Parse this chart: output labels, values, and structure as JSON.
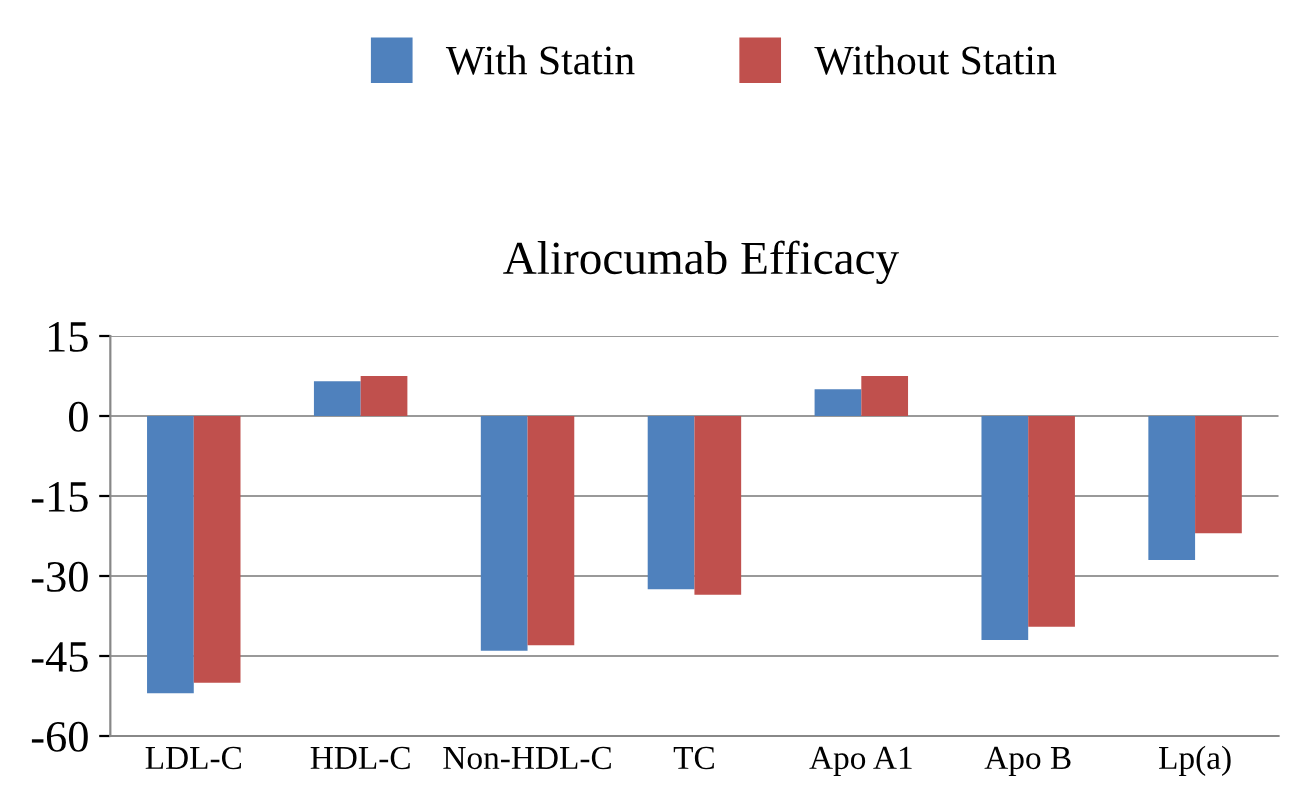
{
  "chart_data": {
    "type": "bar",
    "title": "Alirocumab Efficacy",
    "categories": [
      "LDL-C",
      "HDL-C",
      "Non-HDL-C",
      "TC",
      "Apo A1",
      "Apo B",
      "Lp(a)"
    ],
    "series": [
      {
        "name": "With Statin",
        "color": "#4f81bd",
        "values": [
          -52,
          6.5,
          -44,
          -32.5,
          5,
          -42,
          -27
        ]
      },
      {
        "name": "Without Statin",
        "color": "#c0504d",
        "values": [
          -50,
          7.5,
          -43,
          -33.5,
          7.5,
          -39.5,
          -22
        ]
      }
    ],
    "ylim": [
      -60,
      15
    ],
    "yticks": [
      -60,
      -45,
      -30,
      -15,
      0,
      15
    ],
    "grid": "y",
    "legend": "top"
  }
}
